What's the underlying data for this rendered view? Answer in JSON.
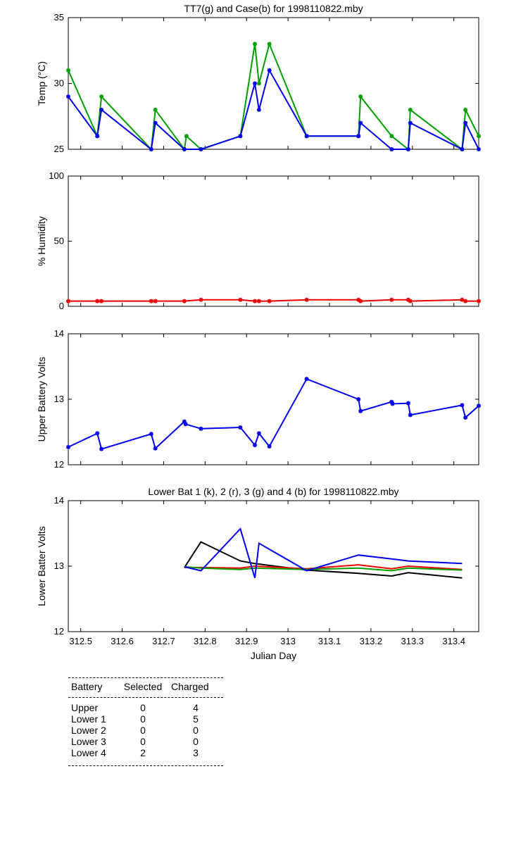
{
  "chart_data": [
    {
      "type": "line",
      "title": "TT7(g) and Case(b) for 1998110822.mby",
      "xlabel": "",
      "ylabel": "Temp  (°C)",
      "xlim": [
        312.47,
        313.46
      ],
      "ylim": [
        25,
        35
      ],
      "yticks": [
        "25",
        "30",
        "35"
      ],
      "series": [
        {
          "name": "TT7",
          "color": "#00a000",
          "marker": "star",
          "x": [
            312.47,
            312.54,
            312.55,
            312.67,
            312.68,
            312.75,
            312.755,
            312.79,
            312.885,
            312.92,
            312.93,
            312.955,
            313.045,
            313.17,
            313.175,
            313.25,
            313.29,
            313.295,
            313.42,
            313.428,
            313.46
          ],
          "y": [
            31,
            26,
            29,
            25,
            28,
            25,
            26,
            25,
            26,
            33,
            30,
            33,
            26,
            26,
            29,
            26,
            25,
            28,
            25,
            28,
            26
          ]
        },
        {
          "name": "Case",
          "color": "#0000ee",
          "marker": "star",
          "x": [
            312.47,
            312.54,
            312.55,
            312.67,
            312.68,
            312.75,
            312.79,
            312.885,
            312.92,
            312.93,
            312.955,
            313.045,
            313.17,
            313.175,
            313.25,
            313.29,
            313.295,
            313.42,
            313.428,
            313.46
          ],
          "y": [
            29,
            26,
            28,
            25,
            27,
            25,
            25,
            26,
            30,
            28,
            31,
            26,
            26,
            27,
            25,
            25,
            27,
            25,
            27,
            25
          ]
        }
      ]
    },
    {
      "type": "line",
      "title": "",
      "xlabel": "",
      "ylabel": "% Humidity",
      "xlim": [
        312.47,
        313.46
      ],
      "ylim": [
        0,
        100
      ],
      "yticks": [
        "0",
        "50",
        "100"
      ],
      "series": [
        {
          "name": "Humidity",
          "color": "#ee0000",
          "marker": "star",
          "x": [
            312.47,
            312.54,
            312.55,
            312.67,
            312.68,
            312.75,
            312.79,
            312.885,
            312.92,
            312.93,
            312.955,
            313.045,
            313.17,
            313.175,
            313.25,
            313.29,
            313.295,
            313.42,
            313.428,
            313.46
          ],
          "y": [
            4,
            4,
            4,
            4,
            4,
            4,
            5,
            5,
            4,
            4,
            4,
            5,
            5,
            4,
            5,
            5,
            4,
            5,
            4,
            4
          ]
        }
      ]
    },
    {
      "type": "line",
      "title": "",
      "xlabel": "",
      "ylabel": "Upper Battery Volts",
      "xlim": [
        312.47,
        313.46
      ],
      "ylim": [
        12,
        14
      ],
      "yticks": [
        "12",
        "13",
        "14"
      ],
      "series": [
        {
          "name": "Upper",
          "color": "#0000ee",
          "marker": "star",
          "x": [
            312.47,
            312.54,
            312.55,
            312.67,
            312.68,
            312.75,
            312.753,
            312.79,
            312.885,
            312.92,
            312.93,
            312.955,
            313.045,
            313.17,
            313.175,
            313.25,
            313.252,
            313.29,
            313.295,
            313.42,
            313.428,
            313.46
          ],
          "y": [
            12.27,
            12.48,
            12.24,
            12.47,
            12.25,
            12.66,
            12.62,
            12.55,
            12.57,
            12.3,
            12.48,
            12.28,
            13.31,
            13.0,
            12.82,
            12.96,
            12.93,
            12.94,
            12.76,
            12.91,
            12.72,
            12.9
          ]
        }
      ]
    },
    {
      "type": "line",
      "title": "Lower Bat 1 (k), 2 (r), 3 (g) and 4 (b) for 1998110822.mby",
      "xlabel": "Julian Day",
      "ylabel": "Lower Batter Volts",
      "xlim": [
        312.47,
        313.46
      ],
      "ylim": [
        12,
        14
      ],
      "yticks": [
        "12",
        "13",
        "14"
      ],
      "xticks": [
        "312.5",
        "312.6",
        "312.7",
        "312.8",
        "312.9",
        "313",
        "313.1",
        "313.2",
        "313.3",
        "313.4"
      ],
      "series": [
        {
          "name": "Lower 1",
          "color": "#000000",
          "x": [
            312.75,
            312.79,
            312.885,
            312.92,
            313.045,
            313.17,
            313.25,
            313.29,
            313.42
          ],
          "y": [
            12.98,
            13.37,
            13.08,
            13.04,
            12.94,
            12.89,
            12.85,
            12.9,
            12.82
          ]
        },
        {
          "name": "Lower 2",
          "color": "#ee0000",
          "x": [
            312.75,
            312.79,
            312.885,
            312.92,
            313.045,
            313.17,
            313.25,
            313.29,
            313.42
          ],
          "y": [
            12.98,
            12.98,
            12.97,
            13.0,
            12.96,
            13.02,
            12.96,
            13.0,
            12.95
          ]
        },
        {
          "name": "Lower 3",
          "color": "#00a000",
          "x": [
            312.75,
            312.79,
            312.885,
            312.92,
            313.045,
            313.17,
            313.25,
            313.29,
            313.42
          ],
          "y": [
            12.99,
            12.97,
            12.95,
            12.97,
            12.95,
            12.97,
            12.93,
            12.97,
            12.94
          ]
        },
        {
          "name": "Lower 4",
          "color": "#0000ee",
          "x": [
            312.75,
            312.79,
            312.885,
            312.92,
            312.93,
            313.045,
            313.17,
            313.25,
            313.29,
            313.42
          ],
          "y": [
            12.99,
            12.93,
            13.57,
            12.82,
            13.35,
            12.93,
            13.17,
            13.11,
            13.08,
            13.04
          ]
        }
      ]
    }
  ],
  "summary_table": {
    "headers": [
      "Battery",
      "Selected",
      "Charged"
    ],
    "rows": [
      [
        "Upper",
        "0",
        "4"
      ],
      [
        "Lower 1",
        "0",
        "5"
      ],
      [
        "Lower 2",
        "0",
        "0"
      ],
      [
        "Lower 3",
        "0",
        "0"
      ],
      [
        "Lower 4",
        "2",
        "3"
      ]
    ]
  }
}
